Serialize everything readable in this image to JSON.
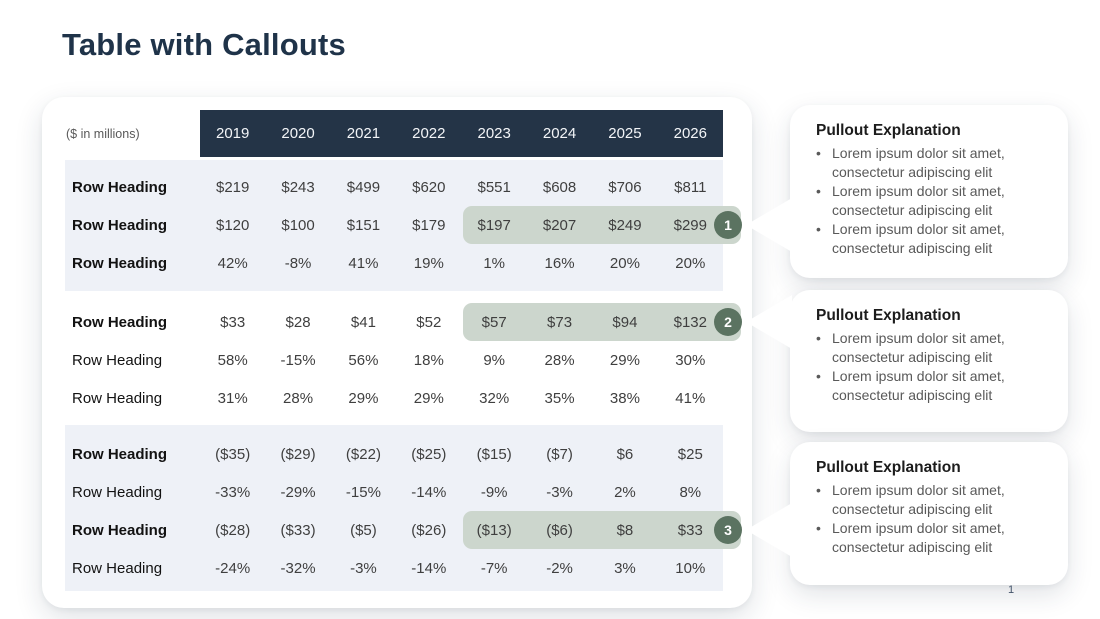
{
  "slide": {
    "title": "Table with Callouts",
    "page_number": "1"
  },
  "table": {
    "unit_label": "($ in millions)",
    "years": [
      "2019",
      "2020",
      "2021",
      "2022",
      "2023",
      "2024",
      "2025",
      "2026"
    ],
    "highlight_start_year": "2023",
    "groups": [
      {
        "shaded": true,
        "rows": [
          {
            "label": "Row Heading",
            "bold": true,
            "values": [
              "$219",
              "$243",
              "$499",
              "$620",
              "$551",
              "$608",
              "$706",
              "$811"
            ]
          },
          {
            "label": "Row Heading",
            "bold": true,
            "highlight": true,
            "callout": "1",
            "values": [
              "$120",
              "$100",
              "$151",
              "$179",
              "$197",
              "$207",
              "$249",
              "$299"
            ]
          },
          {
            "label": "Row Heading",
            "bold": true,
            "values": [
              "42%",
              "-8%",
              "41%",
              "19%",
              "1%",
              "16%",
              "20%",
              "20%"
            ]
          }
        ]
      },
      {
        "shaded": false,
        "rows": [
          {
            "label": "Row Heading",
            "bold": true,
            "highlight": true,
            "callout": "2",
            "values": [
              "$33",
              "$28",
              "$41",
              "$52",
              "$57",
              "$73",
              "$94",
              "$132"
            ]
          },
          {
            "label": "Row Heading",
            "bold": false,
            "values": [
              "58%",
              "-15%",
              "56%",
              "18%",
              "9%",
              "28%",
              "29%",
              "30%"
            ]
          },
          {
            "label": "Row Heading",
            "bold": false,
            "values": [
              "31%",
              "28%",
              "29%",
              "29%",
              "32%",
              "35%",
              "38%",
              "41%"
            ]
          }
        ]
      },
      {
        "shaded": true,
        "rows": [
          {
            "label": "Row Heading",
            "bold": true,
            "values": [
              "($35)",
              "($29)",
              "($22)",
              "($25)",
              "($15)",
              "($7)",
              "$6",
              "$25"
            ]
          },
          {
            "label": "Row Heading",
            "bold": false,
            "values": [
              "-33%",
              "-29%",
              "-15%",
              "-14%",
              "-9%",
              "-3%",
              "2%",
              "8%"
            ]
          },
          {
            "label": "Row Heading",
            "bold": true,
            "highlight": true,
            "callout": "3",
            "values": [
              "($28)",
              "($33)",
              "($5)",
              "($26)",
              "($13)",
              "($6)",
              "$8",
              "$33"
            ]
          },
          {
            "label": "Row Heading",
            "bold": false,
            "values": [
              "-24%",
              "-32%",
              "-3%",
              "-14%",
              "-7%",
              "-2%",
              "3%",
              "10%"
            ]
          }
        ]
      }
    ]
  },
  "callouts": [
    {
      "number": "1",
      "title": "Pullout Explanation",
      "bullets": [
        "Lorem ipsum dolor sit amet, consectetur adipiscing elit",
        "Lorem ipsum dolor sit amet, consectetur adipiscing elit",
        "Lorem ipsum dolor sit amet, consectetur adipiscing elit"
      ]
    },
    {
      "number": "2",
      "title": "Pullout Explanation",
      "bullets": [
        "Lorem ipsum dolor sit amet, consectetur adipiscing elit",
        "Lorem ipsum dolor sit amet, consectetur adipiscing elit"
      ]
    },
    {
      "number": "3",
      "title": "Pullout Explanation",
      "bullets": [
        "Lorem ipsum dolor sit amet, consectetur adipiscing elit",
        "Lorem ipsum dolor sit amet, consectetur adipiscing elit"
      ]
    }
  ],
  "colors": {
    "header_bg": "#243447",
    "header_text": "#f3f5f8",
    "shaded_row_bg": "#eef1f7",
    "highlight_bg": "#ccd6cd",
    "badge_bg": "#5b7361",
    "title_color": "#1f3349",
    "body_text": "#3f3f3f"
  }
}
